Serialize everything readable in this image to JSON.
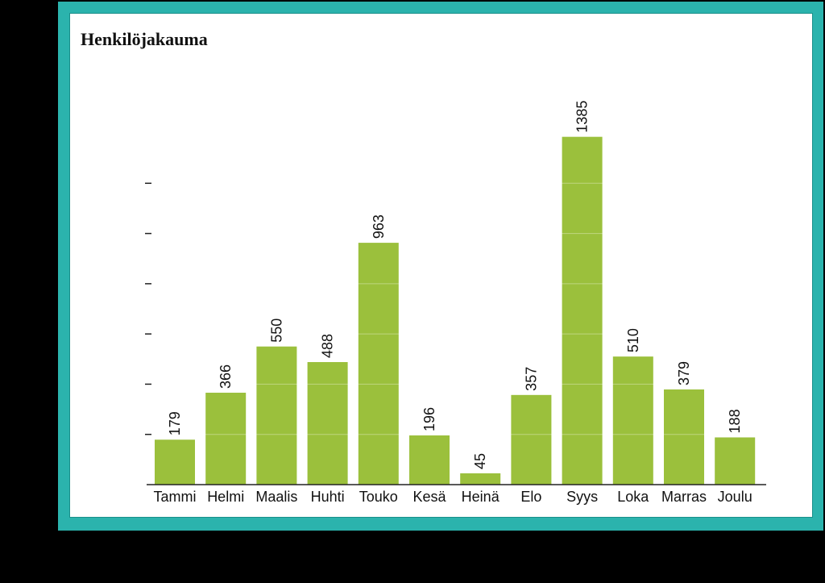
{
  "chart_data": {
    "type": "bar",
    "title": "Henkilöjakauma",
    "categories": [
      "Tammi",
      "Helmi",
      "Maalis",
      "Huhti",
      "Touko",
      "Kesä",
      "Heinä",
      "Elo",
      "Syys",
      "Loka",
      "Marras",
      "Joulu"
    ],
    "values": [
      179,
      366,
      550,
      488,
      963,
      196,
      45,
      357,
      1385,
      510,
      379,
      188
    ],
    "ylim": [
      0,
      1400
    ],
    "y_ticks": [
      200,
      400,
      600,
      800,
      1000,
      1200
    ],
    "grid": true,
    "color": "#9bc03c",
    "data_labels": true,
    "legend": "none"
  }
}
